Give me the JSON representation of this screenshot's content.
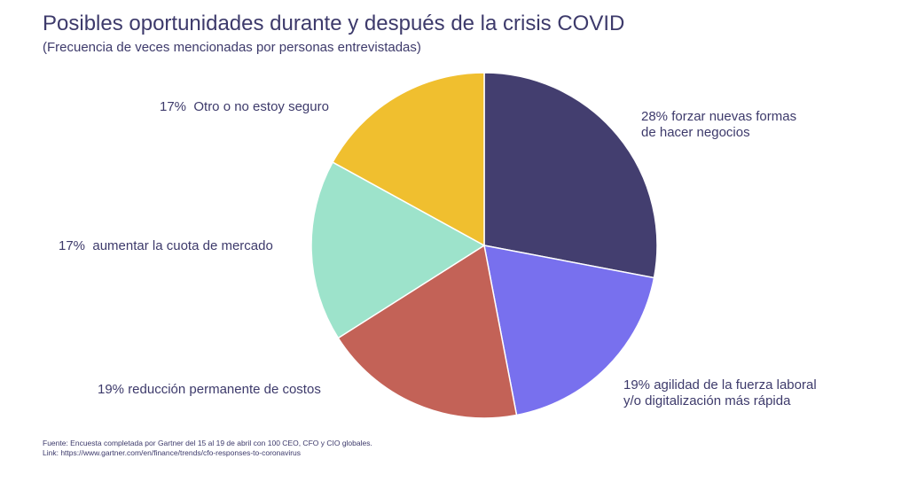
{
  "chart_data": {
    "type": "pie",
    "title": "Posibles oportunidades durante y después de la crisis COVID",
    "subtitle": "(Frecuencia de veces mencionadas por personas entrevistadas)",
    "start": "top",
    "direction": "clockwise",
    "slices": [
      {
        "label": "28% forzar nuevas formas\nde hacer negocios",
        "value": 28,
        "color": "#433e6f"
      },
      {
        "label": "19% agilidad de la fuerza laboral\ny/o digitalización más rápida",
        "value": 19,
        "color": "#7870ee"
      },
      {
        "label": "19% reducción permanente de costos",
        "value": 19,
        "color": "#c36257"
      },
      {
        "label": "17%  aumentar la cuota de mercado",
        "value": 17,
        "color": "#9de3cb"
      },
      {
        "label": "17%  Otro o no estoy seguro",
        "value": 17,
        "color": "#f0bf2f"
      }
    ]
  },
  "footer": {
    "source": "Fuente:   Encuesta completada por Gartner del 15 al 19 de abril con 100 CEO, CFO y CIO globales.",
    "link": "Link: https://www.gartner.com/en/finance/trends/cfo-responses-to-coronavirus"
  }
}
